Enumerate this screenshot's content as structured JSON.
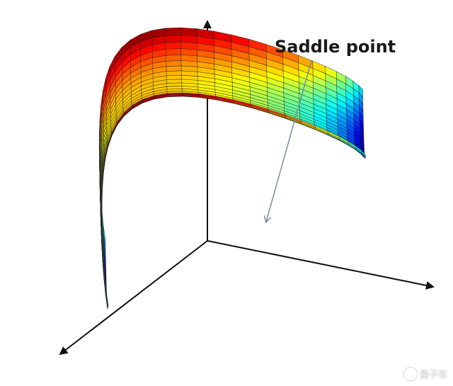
{
  "annotation": {
    "label": "Saddle point"
  },
  "watermark": {
    "text": "量子位",
    "icon": "brand-logo-icon"
  },
  "colors": {
    "background": "#ffffff",
    "axis": "#111111",
    "pointer_line": "#6e8aa0",
    "mesh_line": "#1e1e1e",
    "colormap": [
      "#00007f",
      "#0000ff",
      "#0080ff",
      "#00ffff",
      "#80ff80",
      "#ffff00",
      "#ff8000",
      "#ff0000",
      "#7f0000"
    ]
  },
  "surface": {
    "equation": "",
    "colormap_name": "jet"
  }
}
